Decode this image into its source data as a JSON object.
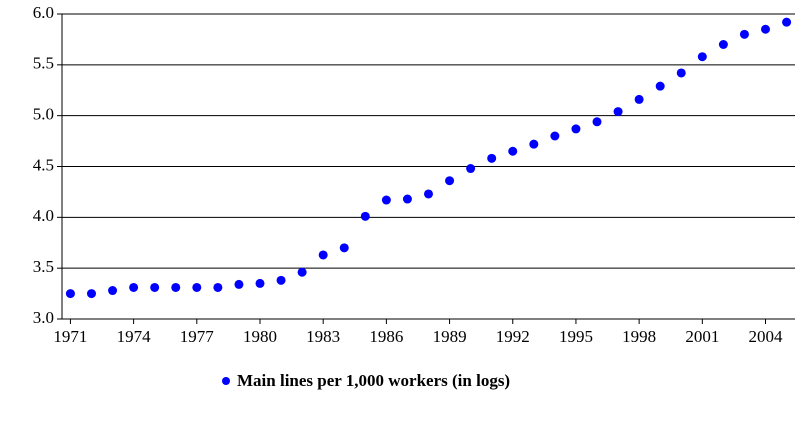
{
  "chart_data": {
    "type": "scatter",
    "x": [
      1971,
      1972,
      1973,
      1974,
      1975,
      1976,
      1977,
      1978,
      1979,
      1980,
      1981,
      1982,
      1983,
      1984,
      1985,
      1986,
      1987,
      1988,
      1989,
      1990,
      1991,
      1992,
      1993,
      1994,
      1995,
      1996,
      1997,
      1998,
      1999,
      2000,
      2001,
      2002,
      2003,
      2004,
      2005
    ],
    "series": [
      {
        "name": "Main lines per 1,000 workers (in logs)",
        "color": "#0000ff",
        "values": [
          3.25,
          3.25,
          3.28,
          3.31,
          3.31,
          3.31,
          3.31,
          3.31,
          3.34,
          3.35,
          3.38,
          3.46,
          3.63,
          3.7,
          4.01,
          4.17,
          4.18,
          4.23,
          4.36,
          4.48,
          4.58,
          4.65,
          4.72,
          4.8,
          4.87,
          4.94,
          5.04,
          5.16,
          5.29,
          5.42,
          5.58,
          5.7,
          5.8,
          5.85,
          5.92
        ]
      }
    ],
    "xlim": [
      1970.6,
      2005.4
    ],
    "xticks": [
      1971,
      1974,
      1977,
      1980,
      1983,
      1986,
      1989,
      1992,
      1995,
      1998,
      2001,
      2004
    ],
    "ylim": [
      3,
      6
    ],
    "yticks": [
      {
        "value": 3,
        "label": "3.0"
      },
      {
        "value": 3.5,
        "label": "3.5"
      },
      {
        "value": 4,
        "label": "4.0"
      },
      {
        "value": 4.5,
        "label": "4.5"
      },
      {
        "value": 5,
        "label": "5.0"
      },
      {
        "value": 5.5,
        "label": "5.5"
      },
      {
        "value": 6,
        "label": "6.0"
      }
    ],
    "grid": true,
    "legend": "bottom"
  }
}
